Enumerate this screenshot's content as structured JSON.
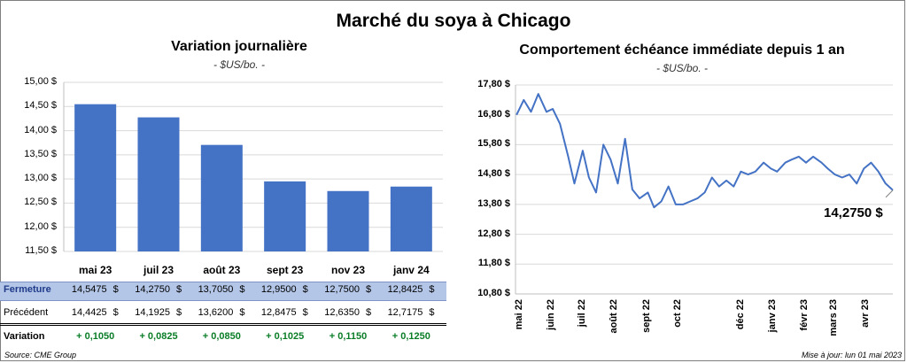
{
  "title": "Marché du soya à Chicago",
  "left_chart": {
    "title": "Variation  journalière",
    "units": "- $US/bo. -",
    "yticks": [
      "15,00 $",
      "14,50 $",
      "14,00 $",
      "13,50 $",
      "13,00 $",
      "12,50 $",
      "12,00 $",
      "11,50 $"
    ]
  },
  "right_chart": {
    "title": "Comportement  échéance immédiate depuis 1 an",
    "units": "- $US/bo. -",
    "yticks": [
      "17,80 $",
      "16,80 $",
      "15,80 $",
      "14,80 $",
      "13,80 $",
      "12,80 $",
      "11,80 $",
      "10,80 $"
    ],
    "xticks": [
      "mai 22",
      "juin 22",
      "juil 22",
      "août 22",
      "sept 22",
      "oct 22",
      "déc 22",
      "janv 23",
      "févr 23",
      "mars 23",
      "avr 23"
    ],
    "last_label": "14,2750 $"
  },
  "table": {
    "fermeture_label": "Fermeture",
    "precedent_label": "Précédent",
    "variation_label": "Variation",
    "dollar": "$",
    "fermeture": [
      "14,5475",
      "14,2750",
      "13,7050",
      "12,9500",
      "12,7500",
      "12,8425"
    ],
    "precedent": [
      "14,4425",
      "14,1925",
      "13,6200",
      "12,8475",
      "12,6350",
      "12,7175"
    ],
    "variation": [
      "+ 0,1050",
      "+ 0,0825",
      "+ 0,0850",
      "+ 0,1025",
      "+ 0,1150",
      "+ 0,1250"
    ]
  },
  "footer": {
    "source": "Source: CME Group",
    "update": "Mise à jour: lun 01 mai 2023"
  },
  "colors": {
    "bar": "#4472c4",
    "line": "#4472c4",
    "variation": "#0a7d27",
    "table_highlight": "#b4c6e7"
  },
  "chart_data": [
    {
      "type": "bar",
      "title": "Variation  journalière",
      "ylabel": "$US/bo.",
      "categories": [
        "mai 23",
        "juil 23",
        "août 23",
        "sept 23",
        "nov 23",
        "janv 24"
      ],
      "values": [
        14.5475,
        14.275,
        13.705,
        12.95,
        12.75,
        12.8425
      ],
      "ylim": [
        11.5,
        15.0
      ],
      "grid": true
    },
    {
      "type": "line",
      "title": "Comportement  échéance immédiate depuis 1 an",
      "ylabel": "$US/bo.",
      "ylim": [
        10.8,
        17.8
      ],
      "x": [
        "2022-05-02",
        "2022-05-09",
        "2022-05-16",
        "2022-05-23",
        "2022-05-31",
        "2022-06-06",
        "2022-06-13",
        "2022-06-21",
        "2022-06-27",
        "2022-07-05",
        "2022-07-11",
        "2022-07-18",
        "2022-07-25",
        "2022-08-01",
        "2022-08-08",
        "2022-08-15",
        "2022-08-22",
        "2022-08-29",
        "2022-09-06",
        "2022-09-12",
        "2022-09-19",
        "2022-09-26",
        "2022-10-03",
        "2022-10-10",
        "2022-10-17",
        "2022-10-24",
        "2022-10-31",
        "2022-11-07",
        "2022-11-14",
        "2022-11-21",
        "2022-11-28",
        "2022-12-05",
        "2022-12-12",
        "2022-12-19",
        "2022-12-27",
        "2023-01-03",
        "2023-01-09",
        "2023-01-17",
        "2023-01-23",
        "2023-01-30",
        "2023-02-06",
        "2023-02-13",
        "2023-02-21",
        "2023-02-27",
        "2023-03-06",
        "2023-03-13",
        "2023-03-20",
        "2023-03-27",
        "2023-04-03",
        "2023-04-10",
        "2023-04-17",
        "2023-04-24",
        "2023-05-01"
      ],
      "y": [
        16.8,
        17.3,
        16.9,
        17.5,
        16.9,
        17.0,
        16.5,
        15.4,
        14.5,
        15.6,
        14.7,
        14.2,
        15.8,
        15.3,
        14.5,
        16.0,
        14.3,
        14.0,
        14.2,
        13.7,
        13.9,
        14.4,
        13.8,
        13.8,
        13.9,
        14.0,
        14.2,
        14.7,
        14.4,
        14.6,
        14.4,
        14.9,
        14.8,
        14.9,
        15.2,
        15.0,
        14.9,
        15.2,
        15.3,
        15.4,
        15.2,
        15.4,
        15.2,
        15.0,
        14.8,
        14.7,
        14.8,
        14.5,
        15.0,
        15.2,
        14.9,
        14.5,
        14.275
      ],
      "last_value_label": "14,2750 $"
    }
  ]
}
